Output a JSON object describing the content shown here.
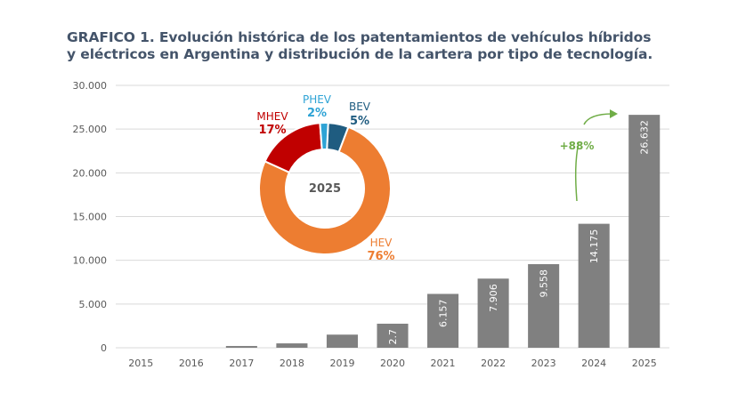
{
  "title": {
    "line1": "GRAFICO 1. Evolución histórica de los patentamientos de vehículos híbridos",
    "line2": "y eléctricos en Argentina y distribución de la cartera por tipo de tecnología."
  },
  "chart_data": [
    {
      "type": "bar",
      "title": "GRAFICO 1. Evolución histórica de los patentamientos de vehículos híbridos y eléctricos en Argentina y distribución de la cartera por tipo de tecnología.",
      "xlabel": "",
      "ylabel": "",
      "categories": [
        "2015",
        "2016",
        "2017",
        "2018",
        "2019",
        "2020",
        "2021",
        "2022",
        "2023",
        "2024",
        "2025"
      ],
      "values": [
        0,
        0,
        200,
        500,
        1500,
        2750,
        6157,
        7906,
        9558,
        14175,
        26632
      ],
      "data_labels": [
        "",
        "",
        "",
        "",
        "",
        "2.7",
        "6.157",
        "7.906",
        "9.558",
        "14.175",
        "26.632"
      ],
      "ylim": [
        0,
        30000
      ],
      "yticks": [
        0,
        5000,
        10000,
        15000,
        20000,
        25000,
        30000
      ],
      "ytick_labels": [
        "0",
        "5.000",
        "10.000",
        "15.000",
        "20.000",
        "25.000",
        "30.000"
      ],
      "grid": true,
      "bar_color": "#808080",
      "annotation": {
        "text": "+88%",
        "from": "2024",
        "to": "2025",
        "color": "#70ad47"
      }
    },
    {
      "type": "pie",
      "center_label": "2025",
      "slices": [
        {
          "name": "BEV",
          "value": 5,
          "label": "5%",
          "color": "#1f5c80"
        },
        {
          "name": "HEV",
          "value": 76,
          "label": "76%",
          "color": "#ed7d31"
        },
        {
          "name": "MHEV",
          "value": 17,
          "label": "17%",
          "color": "#c00000"
        },
        {
          "name": "PHEV",
          "value": 2,
          "label": "2%",
          "color": "#2ea3d5"
        }
      ]
    }
  ]
}
